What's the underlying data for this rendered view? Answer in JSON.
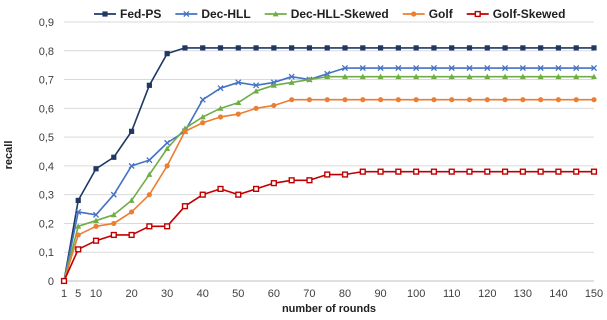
{
  "chart_data": {
    "type": "line",
    "title": "",
    "xlabel": "number of rounds",
    "ylabel": "recall",
    "x": [
      1,
      5,
      10,
      15,
      20,
      25,
      30,
      35,
      40,
      45,
      50,
      55,
      60,
      65,
      70,
      75,
      80,
      85,
      90,
      95,
      100,
      105,
      110,
      115,
      120,
      125,
      130,
      135,
      140,
      145,
      150
    ],
    "x_tick_labels": [
      "1",
      "5",
      "10",
      "20",
      "30",
      "40",
      "50",
      "60",
      "70",
      "80",
      "90",
      "100",
      "110",
      "120",
      "130",
      "140",
      "150"
    ],
    "x_tick_values": [
      1,
      5,
      10,
      20,
      30,
      40,
      50,
      60,
      70,
      80,
      90,
      100,
      110,
      120,
      130,
      140,
      150
    ],
    "y_tick_labels": [
      "0",
      "0,1",
      "0,2",
      "0,3",
      "0,4",
      "0,5",
      "0,6",
      "0,7",
      "0,8",
      "0,9"
    ],
    "ylim": [
      0,
      0.9
    ],
    "grid": "horizontal",
    "legend_position": "top",
    "series": [
      {
        "name": "Fed-PS",
        "color": "#1f3864",
        "marker": "square",
        "values": [
          0,
          0.28,
          0.39,
          0.43,
          0.52,
          0.68,
          0.79,
          0.81,
          0.81,
          0.81,
          0.81,
          0.81,
          0.81,
          0.81,
          0.81,
          0.81,
          0.81,
          0.81,
          0.81,
          0.81,
          0.81,
          0.81,
          0.81,
          0.81,
          0.81,
          0.81,
          0.81,
          0.81,
          0.81,
          0.81,
          0.81
        ]
      },
      {
        "name": "Dec-HLL",
        "color": "#4472c4",
        "marker": "x",
        "values": [
          0,
          0.24,
          0.23,
          0.3,
          0.4,
          0.42,
          0.48,
          0.52,
          0.63,
          0.67,
          0.69,
          0.68,
          0.69,
          0.71,
          0.7,
          0.72,
          0.74,
          0.74,
          0.74,
          0.74,
          0.74,
          0.74,
          0.74,
          0.74,
          0.74,
          0.74,
          0.74,
          0.74,
          0.74,
          0.74,
          0.74
        ]
      },
      {
        "name": "Dec-HLL-Skewed",
        "color": "#70ad47",
        "marker": "triangle",
        "values": [
          0,
          0.19,
          0.21,
          0.23,
          0.28,
          0.37,
          0.46,
          0.53,
          0.57,
          0.6,
          0.62,
          0.66,
          0.68,
          0.69,
          0.7,
          0.71,
          0.71,
          0.71,
          0.71,
          0.71,
          0.71,
          0.71,
          0.71,
          0.71,
          0.71,
          0.71,
          0.71,
          0.71,
          0.71,
          0.71,
          0.71
        ]
      },
      {
        "name": "Golf",
        "color": "#ed7d31",
        "marker": "circle",
        "values": [
          0,
          0.16,
          0.19,
          0.2,
          0.24,
          0.3,
          0.4,
          0.52,
          0.55,
          0.57,
          0.58,
          0.6,
          0.61,
          0.63,
          0.63,
          0.63,
          0.63,
          0.63,
          0.63,
          0.63,
          0.63,
          0.63,
          0.63,
          0.63,
          0.63,
          0.63,
          0.63,
          0.63,
          0.63,
          0.63,
          0.63
        ]
      },
      {
        "name": "Golf-Skewed",
        "color": "#c00000",
        "marker": "square-open",
        "values": [
          0,
          0.11,
          0.14,
          0.16,
          0.16,
          0.19,
          0.19,
          0.26,
          0.3,
          0.32,
          0.3,
          0.32,
          0.34,
          0.35,
          0.35,
          0.37,
          0.37,
          0.38,
          0.38,
          0.38,
          0.38,
          0.38,
          0.38,
          0.38,
          0.38,
          0.38,
          0.38,
          0.38,
          0.38,
          0.38,
          0.38
        ]
      }
    ]
  }
}
